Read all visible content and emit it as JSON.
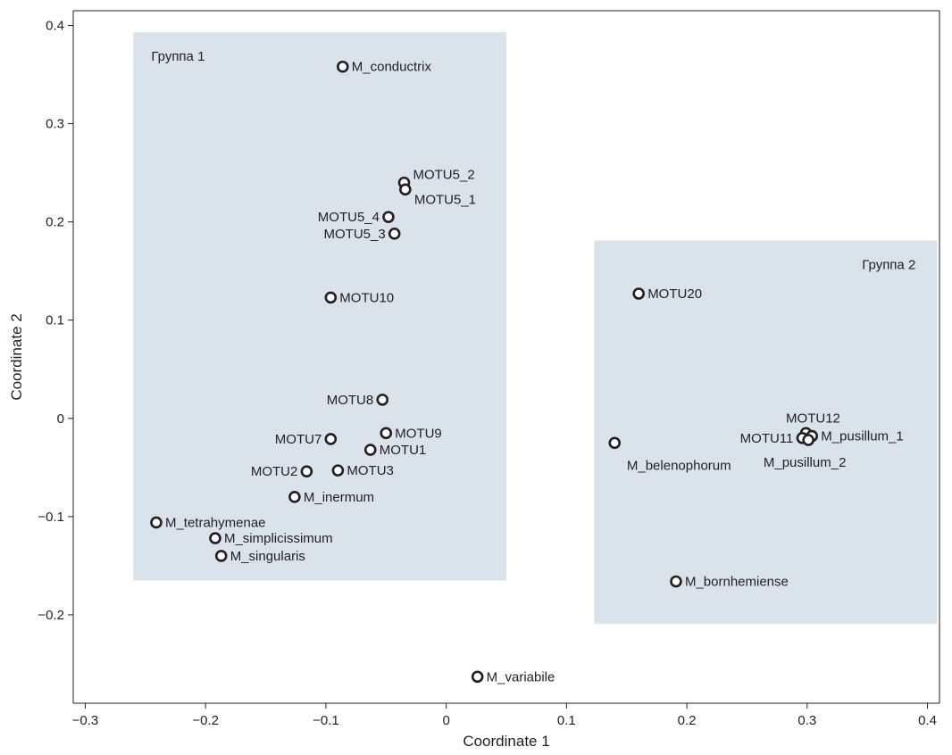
{
  "chart_data": {
    "type": "scatter",
    "title": "",
    "xlabel": "Coordinate 1",
    "ylabel": "Coordinate 2",
    "xlim": [
      -0.31,
      0.41
    ],
    "ylim": [
      -0.29,
      0.415
    ],
    "xticks": [
      {
        "value": -0.3,
        "label": "−0.3"
      },
      {
        "value": -0.2,
        "label": "−0.2"
      },
      {
        "value": -0.1,
        "label": "−0.1"
      },
      {
        "value": 0,
        "label": "0"
      },
      {
        "value": 0.1,
        "label": "0.1"
      },
      {
        "value": 0.2,
        "label": "0.2"
      },
      {
        "value": 0.3,
        "label": "0.3"
      },
      {
        "value": 0.4,
        "label": "0.4"
      }
    ],
    "yticks": [
      {
        "value": -0.2,
        "label": "−0.2"
      },
      {
        "value": -0.1,
        "label": "−0.1"
      },
      {
        "value": 0,
        "label": "0"
      },
      {
        "value": 0.1,
        "label": "0.1"
      },
      {
        "value": 0.2,
        "label": "0.2"
      },
      {
        "value": 0.3,
        "label": "0.3"
      },
      {
        "value": 0.4,
        "label": "0.4"
      }
    ],
    "grid": false,
    "colors": {
      "group_fill": "#dae2ea",
      "point_stroke": "#231f20",
      "point_fill": "#ffffff",
      "axis": "#231f20"
    },
    "groups": [
      {
        "label": "Группа 1",
        "x_range": [
          -0.26,
          0.05
        ],
        "y_range": [
          -0.165,
          0.393
        ],
        "label_anchor": "top-left"
      },
      {
        "label": "Группа 2",
        "x_range": [
          0.123,
          0.408
        ],
        "y_range": [
          -0.209,
          0.181
        ],
        "label_anchor": "top-right"
      }
    ],
    "points": [
      {
        "label": "M_conductrix",
        "x": -0.086,
        "y": 0.358,
        "label_pos": "right"
      },
      {
        "label": "MOTU5_2",
        "x": -0.035,
        "y": 0.24,
        "label_pos": "upper-right"
      },
      {
        "label": "MOTU5_1",
        "x": -0.034,
        "y": 0.233,
        "label_pos": "lower-right"
      },
      {
        "label": "MOTU5_4",
        "x": -0.048,
        "y": 0.205,
        "label_pos": "left"
      },
      {
        "label": "MOTU5_3",
        "x": -0.043,
        "y": 0.188,
        "label_pos": "left"
      },
      {
        "label": "MOTU10",
        "x": -0.096,
        "y": 0.123,
        "label_pos": "right"
      },
      {
        "label": "MOTU8",
        "x": -0.053,
        "y": 0.019,
        "label_pos": "left"
      },
      {
        "label": "MOTU9",
        "x": -0.05,
        "y": -0.015,
        "label_pos": "right"
      },
      {
        "label": "MOTU7",
        "x": -0.096,
        "y": -0.021,
        "label_pos": "left"
      },
      {
        "label": "MOTU1",
        "x": -0.063,
        "y": -0.032,
        "label_pos": "right"
      },
      {
        "label": "MOTU2",
        "x": -0.116,
        "y": -0.054,
        "label_pos": "left"
      },
      {
        "label": "MOTU3",
        "x": -0.09,
        "y": -0.053,
        "label_pos": "right"
      },
      {
        "label": "M_inermum",
        "x": -0.126,
        "y": -0.08,
        "label_pos": "right"
      },
      {
        "label": "M_tetrahymenae",
        "x": -0.241,
        "y": -0.106,
        "label_pos": "right"
      },
      {
        "label": "M_simplicissimum",
        "x": -0.192,
        "y": -0.122,
        "label_pos": "right"
      },
      {
        "label": "M_singularis",
        "x": -0.187,
        "y": -0.14,
        "label_pos": "right"
      },
      {
        "label": "M_variabile",
        "x": 0.026,
        "y": -0.263,
        "label_pos": "right"
      },
      {
        "label": "MOTU20",
        "x": 0.16,
        "y": 0.127,
        "label_pos": "right"
      },
      {
        "label": "M_belenophorum",
        "x": 0.14,
        "y": -0.025,
        "label_pos": "below"
      },
      {
        "label": "MOTU12",
        "x": 0.299,
        "y": -0.015,
        "label_pos": "above"
      },
      {
        "label": "M_pusillum_1",
        "x": 0.304,
        "y": -0.018,
        "label_pos": "right"
      },
      {
        "label": "MOTU11",
        "x": 0.296,
        "y": -0.02,
        "label_pos": "left"
      },
      {
        "label": "M_pusillum_2",
        "x": 0.301,
        "y": -0.022,
        "label_pos": "below"
      },
      {
        "label": "M_bornhemiense",
        "x": 0.191,
        "y": -0.166,
        "label_pos": "right"
      }
    ]
  }
}
